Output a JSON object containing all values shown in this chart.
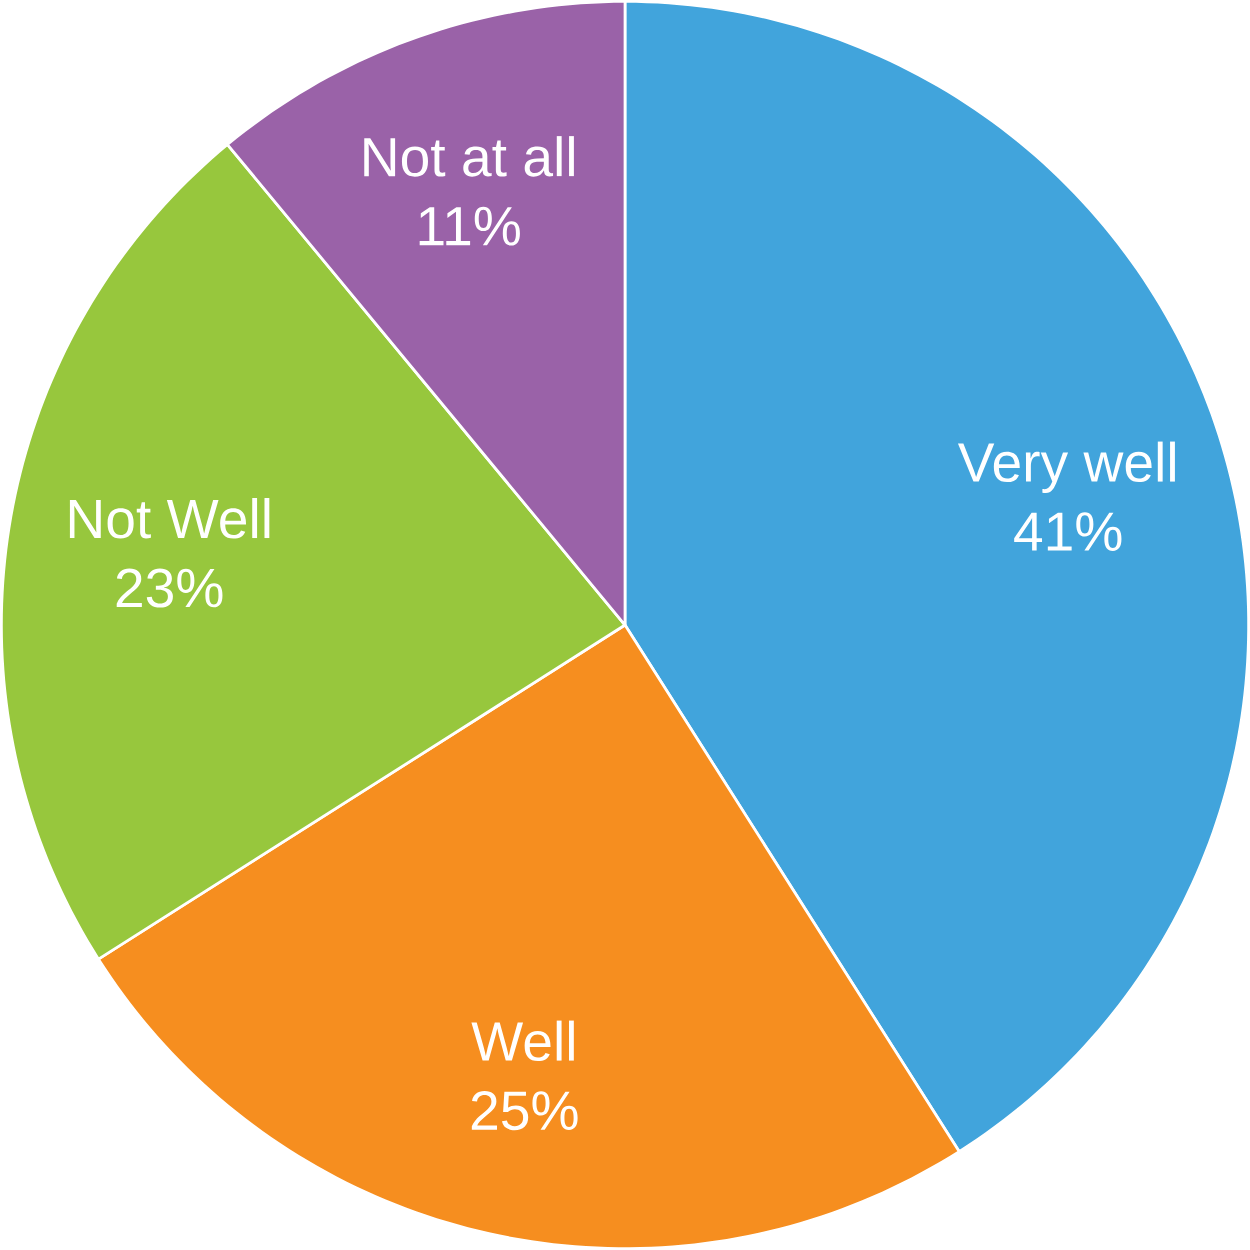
{
  "chart_data": {
    "type": "pie",
    "categories": [
      "Very well",
      "Well",
      "Not Well",
      "Not at all"
    ],
    "values": [
      41,
      25,
      23,
      11
    ],
    "value_labels": [
      "41%",
      "25%",
      "23%",
      "11%"
    ],
    "colors": [
      "#41a4dc",
      "#f68e1f",
      "#97c73d",
      "#9a62a8"
    ]
  }
}
